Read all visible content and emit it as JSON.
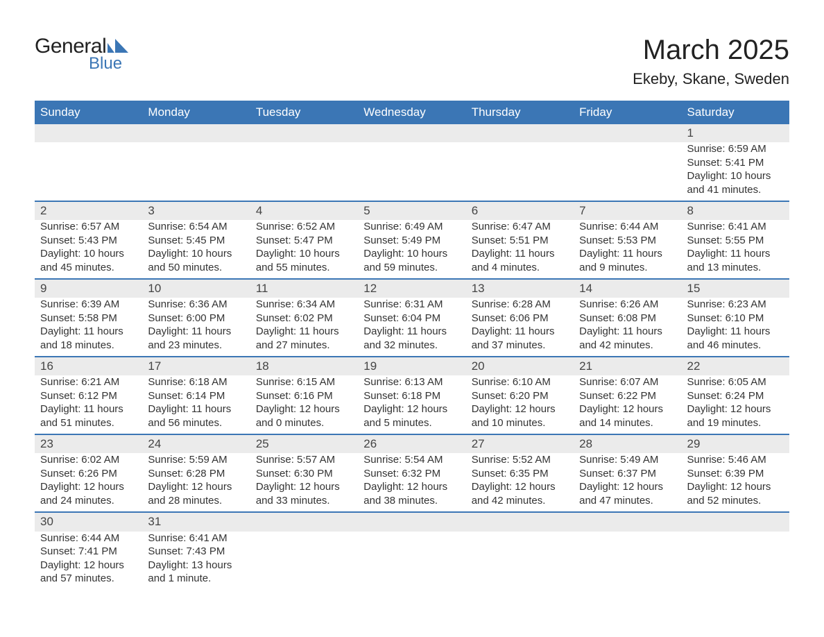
{
  "brand": {
    "word1": "General",
    "word2": "Blue",
    "logo_color": "#3b76b5"
  },
  "title": "March 2025",
  "location": "Ekeby, Skane, Sweden",
  "colors": {
    "header_bg": "#3b76b5",
    "header_text": "#ffffff",
    "daynum_bg": "#ebebeb",
    "rule": "#3b76b5",
    "text": "#333333",
    "title_text": "#222222",
    "page_bg": "#ffffff"
  },
  "typography": {
    "title_fontsize": 40,
    "location_fontsize": 22,
    "header_fontsize": 17,
    "daynum_fontsize": 17,
    "detail_fontsize": 15,
    "font_family": "Arial"
  },
  "layout": {
    "columns": 7,
    "rows": 6
  },
  "weekdays": [
    "Sunday",
    "Monday",
    "Tuesday",
    "Wednesday",
    "Thursday",
    "Friday",
    "Saturday"
  ],
  "weeks": [
    [
      null,
      null,
      null,
      null,
      null,
      null,
      {
        "num": "1",
        "sunrise": "Sunrise: 6:59 AM",
        "sunset": "Sunset: 5:41 PM",
        "daylight": "Daylight: 10 hours and 41 minutes."
      }
    ],
    [
      {
        "num": "2",
        "sunrise": "Sunrise: 6:57 AM",
        "sunset": "Sunset: 5:43 PM",
        "daylight": "Daylight: 10 hours and 45 minutes."
      },
      {
        "num": "3",
        "sunrise": "Sunrise: 6:54 AM",
        "sunset": "Sunset: 5:45 PM",
        "daylight": "Daylight: 10 hours and 50 minutes."
      },
      {
        "num": "4",
        "sunrise": "Sunrise: 6:52 AM",
        "sunset": "Sunset: 5:47 PM",
        "daylight": "Daylight: 10 hours and 55 minutes."
      },
      {
        "num": "5",
        "sunrise": "Sunrise: 6:49 AM",
        "sunset": "Sunset: 5:49 PM",
        "daylight": "Daylight: 10 hours and 59 minutes."
      },
      {
        "num": "6",
        "sunrise": "Sunrise: 6:47 AM",
        "sunset": "Sunset: 5:51 PM",
        "daylight": "Daylight: 11 hours and 4 minutes."
      },
      {
        "num": "7",
        "sunrise": "Sunrise: 6:44 AM",
        "sunset": "Sunset: 5:53 PM",
        "daylight": "Daylight: 11 hours and 9 minutes."
      },
      {
        "num": "8",
        "sunrise": "Sunrise: 6:41 AM",
        "sunset": "Sunset: 5:55 PM",
        "daylight": "Daylight: 11 hours and 13 minutes."
      }
    ],
    [
      {
        "num": "9",
        "sunrise": "Sunrise: 6:39 AM",
        "sunset": "Sunset: 5:58 PM",
        "daylight": "Daylight: 11 hours and 18 minutes."
      },
      {
        "num": "10",
        "sunrise": "Sunrise: 6:36 AM",
        "sunset": "Sunset: 6:00 PM",
        "daylight": "Daylight: 11 hours and 23 minutes."
      },
      {
        "num": "11",
        "sunrise": "Sunrise: 6:34 AM",
        "sunset": "Sunset: 6:02 PM",
        "daylight": "Daylight: 11 hours and 27 minutes."
      },
      {
        "num": "12",
        "sunrise": "Sunrise: 6:31 AM",
        "sunset": "Sunset: 6:04 PM",
        "daylight": "Daylight: 11 hours and 32 minutes."
      },
      {
        "num": "13",
        "sunrise": "Sunrise: 6:28 AM",
        "sunset": "Sunset: 6:06 PM",
        "daylight": "Daylight: 11 hours and 37 minutes."
      },
      {
        "num": "14",
        "sunrise": "Sunrise: 6:26 AM",
        "sunset": "Sunset: 6:08 PM",
        "daylight": "Daylight: 11 hours and 42 minutes."
      },
      {
        "num": "15",
        "sunrise": "Sunrise: 6:23 AM",
        "sunset": "Sunset: 6:10 PM",
        "daylight": "Daylight: 11 hours and 46 minutes."
      }
    ],
    [
      {
        "num": "16",
        "sunrise": "Sunrise: 6:21 AM",
        "sunset": "Sunset: 6:12 PM",
        "daylight": "Daylight: 11 hours and 51 minutes."
      },
      {
        "num": "17",
        "sunrise": "Sunrise: 6:18 AM",
        "sunset": "Sunset: 6:14 PM",
        "daylight": "Daylight: 11 hours and 56 minutes."
      },
      {
        "num": "18",
        "sunrise": "Sunrise: 6:15 AM",
        "sunset": "Sunset: 6:16 PM",
        "daylight": "Daylight: 12 hours and 0 minutes."
      },
      {
        "num": "19",
        "sunrise": "Sunrise: 6:13 AM",
        "sunset": "Sunset: 6:18 PM",
        "daylight": "Daylight: 12 hours and 5 minutes."
      },
      {
        "num": "20",
        "sunrise": "Sunrise: 6:10 AM",
        "sunset": "Sunset: 6:20 PM",
        "daylight": "Daylight: 12 hours and 10 minutes."
      },
      {
        "num": "21",
        "sunrise": "Sunrise: 6:07 AM",
        "sunset": "Sunset: 6:22 PM",
        "daylight": "Daylight: 12 hours and 14 minutes."
      },
      {
        "num": "22",
        "sunrise": "Sunrise: 6:05 AM",
        "sunset": "Sunset: 6:24 PM",
        "daylight": "Daylight: 12 hours and 19 minutes."
      }
    ],
    [
      {
        "num": "23",
        "sunrise": "Sunrise: 6:02 AM",
        "sunset": "Sunset: 6:26 PM",
        "daylight": "Daylight: 12 hours and 24 minutes."
      },
      {
        "num": "24",
        "sunrise": "Sunrise: 5:59 AM",
        "sunset": "Sunset: 6:28 PM",
        "daylight": "Daylight: 12 hours and 28 minutes."
      },
      {
        "num": "25",
        "sunrise": "Sunrise: 5:57 AM",
        "sunset": "Sunset: 6:30 PM",
        "daylight": "Daylight: 12 hours and 33 minutes."
      },
      {
        "num": "26",
        "sunrise": "Sunrise: 5:54 AM",
        "sunset": "Sunset: 6:32 PM",
        "daylight": "Daylight: 12 hours and 38 minutes."
      },
      {
        "num": "27",
        "sunrise": "Sunrise: 5:52 AM",
        "sunset": "Sunset: 6:35 PM",
        "daylight": "Daylight: 12 hours and 42 minutes."
      },
      {
        "num": "28",
        "sunrise": "Sunrise: 5:49 AM",
        "sunset": "Sunset: 6:37 PM",
        "daylight": "Daylight: 12 hours and 47 minutes."
      },
      {
        "num": "29",
        "sunrise": "Sunrise: 5:46 AM",
        "sunset": "Sunset: 6:39 PM",
        "daylight": "Daylight: 12 hours and 52 minutes."
      }
    ],
    [
      {
        "num": "30",
        "sunrise": "Sunrise: 6:44 AM",
        "sunset": "Sunset: 7:41 PM",
        "daylight": "Daylight: 12 hours and 57 minutes."
      },
      {
        "num": "31",
        "sunrise": "Sunrise: 6:41 AM",
        "sunset": "Sunset: 7:43 PM",
        "daylight": "Daylight: 13 hours and 1 minute."
      },
      null,
      null,
      null,
      null,
      null
    ]
  ]
}
